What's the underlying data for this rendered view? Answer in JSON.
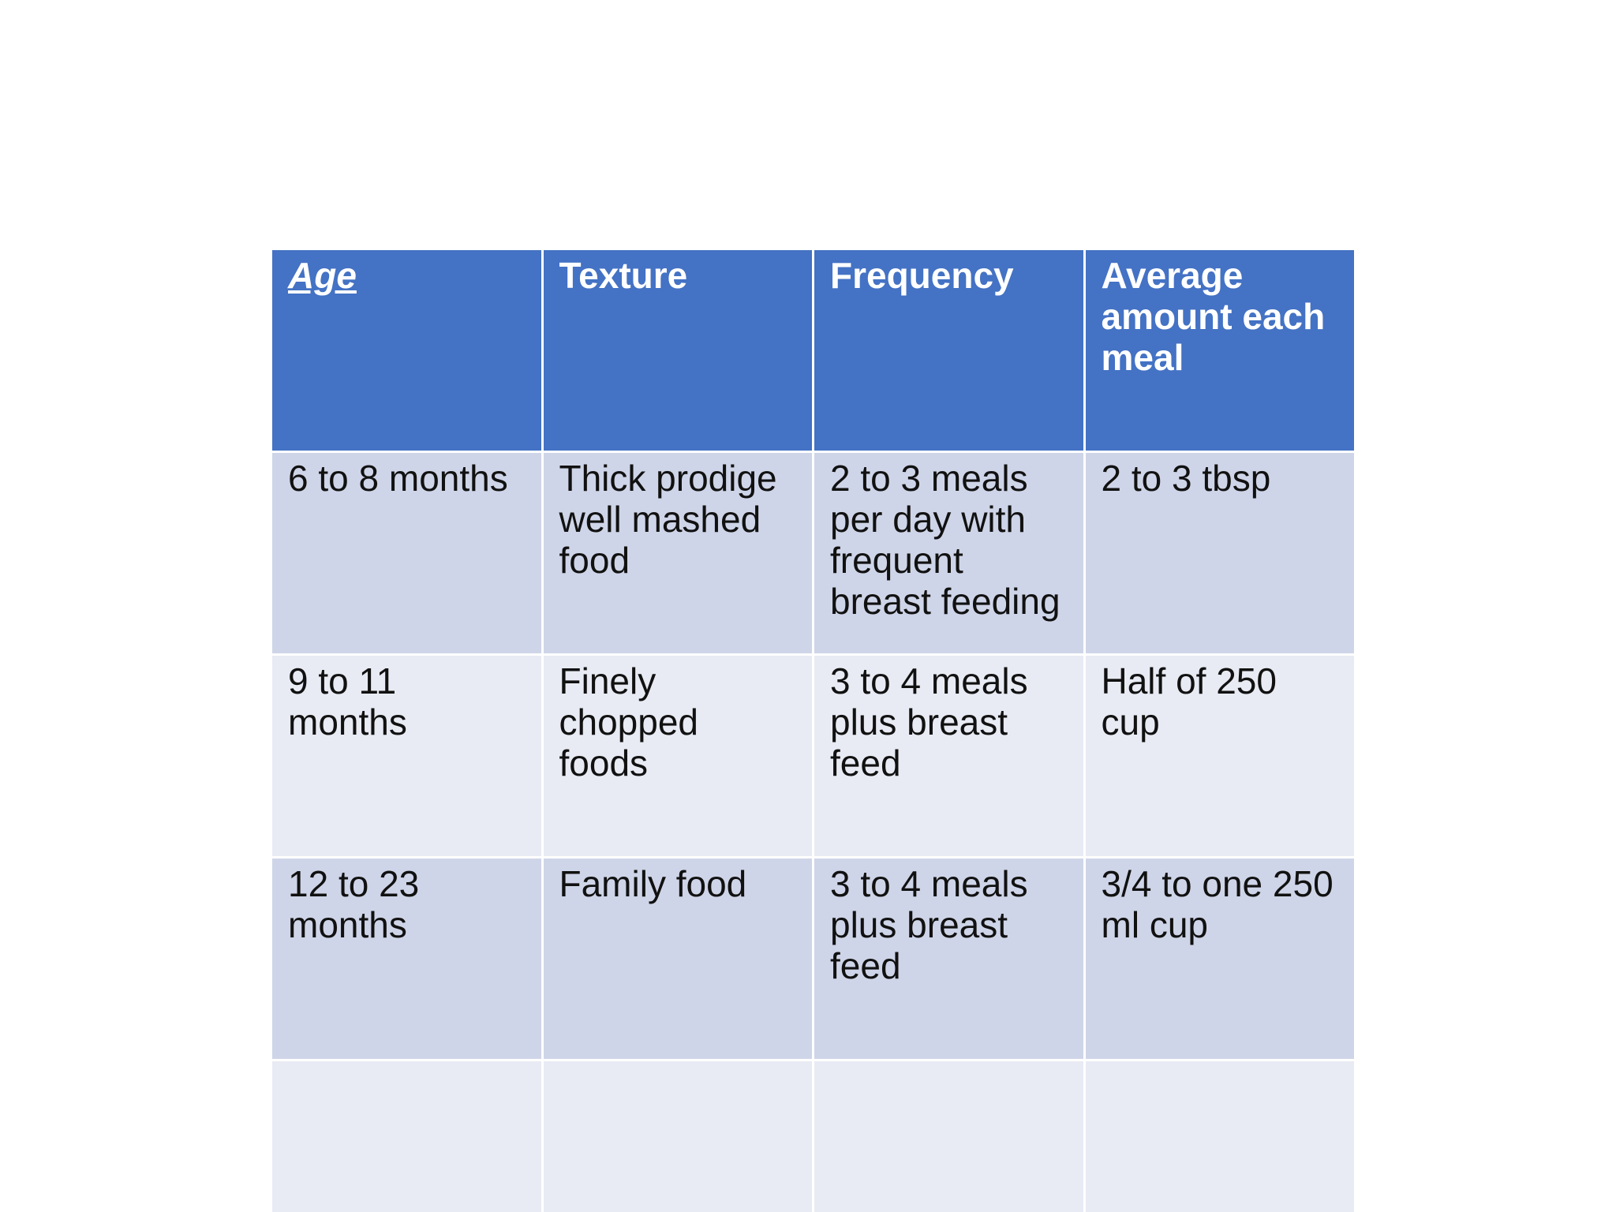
{
  "table": {
    "headers": [
      "Age",
      "Texture",
      "Frequency",
      "Average amount each meal"
    ],
    "rows": [
      [
        "6 to 8 months",
        "Thick prodige well mashed food",
        "2 to 3 meals per day with frequent breast feeding",
        "2 to 3 tbsp"
      ],
      [
        "9 to 11 months",
        "Finely chopped foods",
        "3 to 4 meals plus breast feed",
        "Half of 250 cup"
      ],
      [
        "12 to 23 months",
        "Family food",
        "3 to 4 meals plus breast feed",
        "3/4 to one 250 ml cup"
      ],
      [
        "",
        "",
        "",
        ""
      ]
    ]
  },
  "colors": {
    "header_background": "#4472c4",
    "row_dark": "#cfd5e8",
    "row_light": "#e8ebf3",
    "header_text": "#ffffff",
    "body_text": "#111111"
  }
}
